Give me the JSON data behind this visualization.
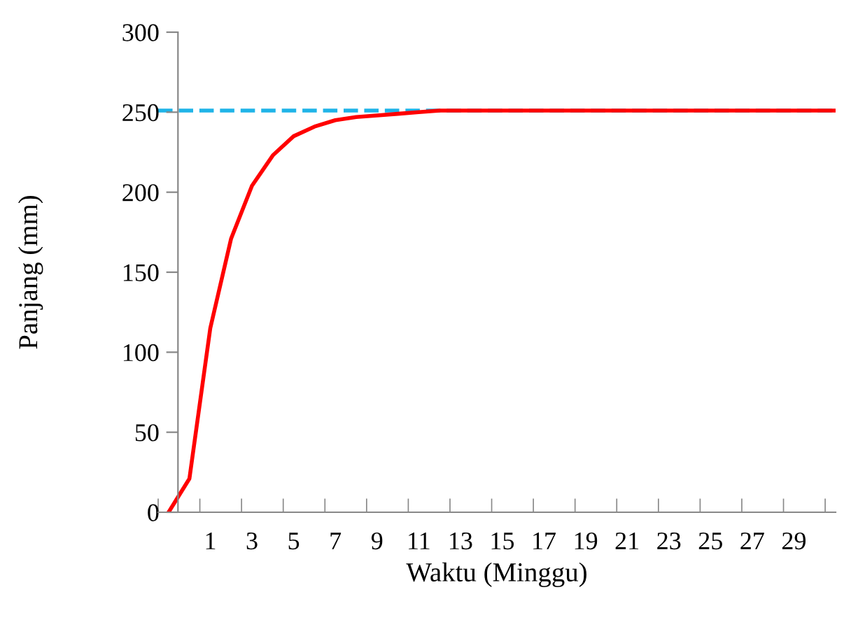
{
  "chart_data": {
    "type": "line",
    "xlabel": "Waktu (Minggu)",
    "ylabel": "Panjang (mm)",
    "x": [
      -1,
      0,
      1,
      2,
      3,
      4,
      5,
      6,
      7,
      8,
      9,
      10,
      11,
      12,
      13,
      14,
      15,
      16,
      17,
      18,
      19,
      20,
      21,
      22,
      23,
      24,
      25,
      26,
      27,
      28,
      29,
      30,
      31
    ],
    "series": [
      {
        "color": "#ff0000",
        "values": [
          0,
          21,
          115,
          171,
          204,
          223,
          235,
          241,
          245,
          247,
          248,
          249,
          250,
          251,
          251,
          251,
          251,
          251,
          251,
          251,
          251,
          251,
          251,
          251,
          251,
          251,
          251,
          251,
          251,
          251,
          251,
          251,
          251
        ]
      }
    ],
    "xlim": [
      -1.5,
      31
    ],
    "xticks": [
      {
        "value": -1.5,
        "label": null
      },
      {
        "value": 0.5,
        "label": null
      },
      {
        "value": 1,
        "label": "1"
      },
      {
        "value": 2.5,
        "label": null
      },
      {
        "value": 3,
        "label": "3"
      },
      {
        "value": 4.5,
        "label": null
      },
      {
        "value": 5,
        "label": "5"
      },
      {
        "value": 6.5,
        "label": null
      },
      {
        "value": 7,
        "label": "7"
      },
      {
        "value": 8.5,
        "label": null
      },
      {
        "value": 9,
        "label": "9"
      },
      {
        "value": 10.5,
        "label": null
      },
      {
        "value": 11,
        "label": "11"
      },
      {
        "value": 12.5,
        "label": null
      },
      {
        "value": 13,
        "label": "13"
      },
      {
        "value": 14.5,
        "label": null
      },
      {
        "value": 15,
        "label": "15"
      },
      {
        "value": 16.5,
        "label": null
      },
      {
        "value": 17,
        "label": "17"
      },
      {
        "value": 18.5,
        "label": null
      },
      {
        "value": 19,
        "label": "19"
      },
      {
        "value": 20.5,
        "label": null
      },
      {
        "value": 21,
        "label": "21"
      },
      {
        "value": 22.5,
        "label": null
      },
      {
        "value": 23,
        "label": "23"
      },
      {
        "value": 24.5,
        "label": null
      },
      {
        "value": 25,
        "label": "25"
      },
      {
        "value": 26.5,
        "label": null
      },
      {
        "value": 27,
        "label": "27"
      },
      {
        "value": 28.5,
        "label": null
      },
      {
        "value": 29,
        "label": "29"
      },
      {
        "value": 30.5,
        "label": null
      }
    ],
    "ylim": [
      0,
      300
    ],
    "yticks": [
      0,
      50,
      100,
      150,
      200,
      250,
      300
    ],
    "ref_lines": [
      {
        "axis": "y",
        "value": 251,
        "color": "#1fb4e8",
        "line_style": "dashed"
      }
    ],
    "grid": false,
    "legend": false,
    "marker": "none",
    "line_style": "solid"
  }
}
